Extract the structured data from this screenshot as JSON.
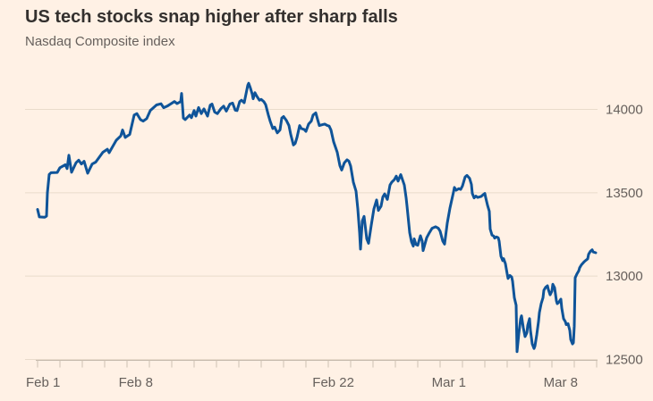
{
  "header": {
    "title": "US tech stocks snap higher after sharp falls",
    "subtitle": "Nasdaq Composite index"
  },
  "colors": {
    "background": "#FFF1E5",
    "line": "#0F5499",
    "title_text": "#33302E",
    "subtitle_text": "#66605C",
    "axis_label": "#66605C",
    "gridline": "#E9DBCB",
    "axis_line": "#C6BAAC",
    "tick": "#CCC1B3"
  },
  "chart_data": {
    "type": "line",
    "title": "US tech stocks snap higher after sharp falls",
    "subtitle": "Nasdaq Composite index",
    "xlabel": "",
    "ylabel": "",
    "legend": "none",
    "grid": "horizontal",
    "ylim": [
      12500,
      14200
    ],
    "yticks": [
      12500,
      13000,
      13500,
      14000
    ],
    "ytick_labels": [
      "12500",
      "13000",
      "13500",
      "14000"
    ],
    "x_unit": "trading days since Feb 1 (intraday, 1 unit = 1 trading day)",
    "x_range_days": [
      0,
      25
    ],
    "xticks": [
      {
        "label": "Feb 1",
        "day": 0
      },
      {
        "label": "Feb 8",
        "day": 5
      },
      {
        "label": "Feb 22",
        "day": 14
      },
      {
        "label": "Mar 1",
        "day": 19
      },
      {
        "label": "Mar 8",
        "day": 24
      }
    ],
    "minor_ticks_every_day": true,
    "series": [
      {
        "name": "Nasdaq Composite index",
        "color": "#0F5499",
        "points": [
          [
            0.0,
            13400
          ],
          [
            0.08,
            13355
          ],
          [
            0.32,
            13353
          ],
          [
            0.4,
            13360
          ],
          [
            0.44,
            13500
          ],
          [
            0.52,
            13610
          ],
          [
            0.6,
            13620
          ],
          [
            0.88,
            13622
          ],
          [
            1.0,
            13650
          ],
          [
            1.24,
            13668
          ],
          [
            1.32,
            13645
          ],
          [
            1.4,
            13725
          ],
          [
            1.52,
            13623
          ],
          [
            1.72,
            13680
          ],
          [
            1.84,
            13695
          ],
          [
            1.96,
            13672
          ],
          [
            2.08,
            13689
          ],
          [
            2.24,
            13617
          ],
          [
            2.44,
            13672
          ],
          [
            2.6,
            13684
          ],
          [
            2.92,
            13743
          ],
          [
            3.12,
            13761
          ],
          [
            3.2,
            13740
          ],
          [
            3.52,
            13815
          ],
          [
            3.72,
            13841
          ],
          [
            3.8,
            13877
          ],
          [
            3.92,
            13832
          ],
          [
            4.12,
            13850
          ],
          [
            4.32,
            13966
          ],
          [
            4.44,
            13975
          ],
          [
            4.6,
            13939
          ],
          [
            4.72,
            13930
          ],
          [
            4.88,
            13945
          ],
          [
            5.04,
            13993
          ],
          [
            5.32,
            14027
          ],
          [
            5.52,
            14034
          ],
          [
            5.64,
            14010
          ],
          [
            5.8,
            14020
          ],
          [
            5.92,
            14030
          ],
          [
            6.12,
            14047
          ],
          [
            6.24,
            14035
          ],
          [
            6.4,
            14047
          ],
          [
            6.44,
            14096
          ],
          [
            6.52,
            13948
          ],
          [
            6.6,
            13939
          ],
          [
            6.8,
            13966
          ],
          [
            6.88,
            13950
          ],
          [
            7.0,
            13993
          ],
          [
            7.08,
            13960
          ],
          [
            7.2,
            14011
          ],
          [
            7.32,
            13975
          ],
          [
            7.44,
            14003
          ],
          [
            7.6,
            13960
          ],
          [
            7.72,
            14025
          ],
          [
            7.8,
            14032
          ],
          [
            7.92,
            13984
          ],
          [
            8.04,
            13975
          ],
          [
            8.2,
            14005
          ],
          [
            8.32,
            14020
          ],
          [
            8.44,
            13990
          ],
          [
            8.6,
            14032
          ],
          [
            8.72,
            14038
          ],
          [
            8.84,
            13995
          ],
          [
            8.92,
            13993
          ],
          [
            9.04,
            14047
          ],
          [
            9.12,
            14055
          ],
          [
            9.24,
            14040
          ],
          [
            9.4,
            14145
          ],
          [
            9.44,
            14157
          ],
          [
            9.52,
            14127
          ],
          [
            9.6,
            14091
          ],
          [
            9.64,
            14064
          ],
          [
            9.72,
            14100
          ],
          [
            9.8,
            14080
          ],
          [
            9.92,
            14055
          ],
          [
            10.0,
            14060
          ],
          [
            10.12,
            14046
          ],
          [
            10.2,
            14028
          ],
          [
            10.32,
            13966
          ],
          [
            10.4,
            13930
          ],
          [
            10.52,
            13885
          ],
          [
            10.6,
            13894
          ],
          [
            10.72,
            13859
          ],
          [
            10.84,
            13877
          ],
          [
            10.92,
            13948
          ],
          [
            11.0,
            13957
          ],
          [
            11.12,
            13935
          ],
          [
            11.24,
            13903
          ],
          [
            11.32,
            13850
          ],
          [
            11.44,
            13787
          ],
          [
            11.52,
            13796
          ],
          [
            11.6,
            13832
          ],
          [
            11.72,
            13903
          ],
          [
            11.8,
            13885
          ],
          [
            11.92,
            13880
          ],
          [
            12.0,
            13868
          ],
          [
            12.12,
            13912
          ],
          [
            12.24,
            13930
          ],
          [
            12.32,
            13966
          ],
          [
            12.44,
            13979
          ],
          [
            12.52,
            13940
          ],
          [
            12.6,
            13903
          ],
          [
            12.72,
            13908
          ],
          [
            12.84,
            13912
          ],
          [
            12.96,
            13903
          ],
          [
            13.04,
            13900
          ],
          [
            13.12,
            13877
          ],
          [
            13.24,
            13805
          ],
          [
            13.4,
            13743
          ],
          [
            13.52,
            13662
          ],
          [
            13.6,
            13636
          ],
          [
            13.72,
            13680
          ],
          [
            13.84,
            13698
          ],
          [
            13.92,
            13690
          ],
          [
            14.0,
            13660
          ],
          [
            14.12,
            13564
          ],
          [
            14.24,
            13510
          ],
          [
            14.32,
            13403
          ],
          [
            14.4,
            13260
          ],
          [
            14.44,
            13162
          ],
          [
            14.52,
            13331
          ],
          [
            14.6,
            13358
          ],
          [
            14.72,
            13224
          ],
          [
            14.8,
            13197
          ],
          [
            14.92,
            13304
          ],
          [
            15.04,
            13403
          ],
          [
            15.16,
            13457
          ],
          [
            15.24,
            13394
          ],
          [
            15.36,
            13420
          ],
          [
            15.44,
            13475
          ],
          [
            15.52,
            13493
          ],
          [
            15.64,
            13460
          ],
          [
            15.76,
            13546
          ],
          [
            15.84,
            13564
          ],
          [
            15.96,
            13580
          ],
          [
            16.04,
            13600
          ],
          [
            16.12,
            13570
          ],
          [
            16.24,
            13609
          ],
          [
            16.4,
            13546
          ],
          [
            16.48,
            13470
          ],
          [
            16.52,
            13421
          ],
          [
            16.64,
            13260
          ],
          [
            16.72,
            13206
          ],
          [
            16.8,
            13180
          ],
          [
            16.84,
            13224
          ],
          [
            16.92,
            13190
          ],
          [
            17.0,
            13185
          ],
          [
            17.12,
            13242
          ],
          [
            17.2,
            13210
          ],
          [
            17.24,
            13153
          ],
          [
            17.4,
            13230
          ],
          [
            17.52,
            13260
          ],
          [
            17.64,
            13287
          ],
          [
            17.8,
            13296
          ],
          [
            17.92,
            13287
          ],
          [
            18.0,
            13270
          ],
          [
            18.12,
            13210
          ],
          [
            18.2,
            13192
          ],
          [
            18.32,
            13318
          ],
          [
            18.44,
            13408
          ],
          [
            18.6,
            13505
          ],
          [
            18.64,
            13532
          ],
          [
            18.72,
            13515
          ],
          [
            18.84,
            13525
          ],
          [
            18.92,
            13520
          ],
          [
            19.0,
            13541
          ],
          [
            19.12,
            13595
          ],
          [
            19.2,
            13604
          ],
          [
            19.32,
            13586
          ],
          [
            19.4,
            13550
          ],
          [
            19.44,
            13496
          ],
          [
            19.52,
            13469
          ],
          [
            19.6,
            13480
          ],
          [
            19.68,
            13472
          ],
          [
            19.84,
            13478
          ],
          [
            19.92,
            13488
          ],
          [
            20.0,
            13496
          ],
          [
            20.04,
            13470
          ],
          [
            20.12,
            13425
          ],
          [
            20.2,
            13389
          ],
          [
            20.24,
            13282
          ],
          [
            20.32,
            13246
          ],
          [
            20.4,
            13240
          ],
          [
            20.44,
            13228
          ],
          [
            20.52,
            13235
          ],
          [
            20.6,
            13230
          ],
          [
            20.64,
            13210
          ],
          [
            20.72,
            13120
          ],
          [
            20.8,
            13093
          ],
          [
            20.84,
            13105
          ],
          [
            20.92,
            13075
          ],
          [
            21.0,
            13013
          ],
          [
            21.04,
            12986
          ],
          [
            21.12,
            13004
          ],
          [
            21.2,
            12995
          ],
          [
            21.24,
            12970
          ],
          [
            21.32,
            12870
          ],
          [
            21.4,
            12825
          ],
          [
            21.44,
            12547
          ],
          [
            21.52,
            12655
          ],
          [
            21.6,
            12744
          ],
          [
            21.64,
            12762
          ],
          [
            21.72,
            12690
          ],
          [
            21.8,
            12637
          ],
          [
            21.88,
            12660
          ],
          [
            21.92,
            12705
          ],
          [
            22.0,
            12745
          ],
          [
            22.04,
            12674
          ],
          [
            22.12,
            12593
          ],
          [
            22.2,
            12566
          ],
          [
            22.24,
            12580
          ],
          [
            22.32,
            12647
          ],
          [
            22.4,
            12727
          ],
          [
            22.44,
            12781
          ],
          [
            22.52,
            12835
          ],
          [
            22.6,
            12870
          ],
          [
            22.64,
            12915
          ],
          [
            22.72,
            12933
          ],
          [
            22.8,
            12942
          ],
          [
            22.84,
            12920
          ],
          [
            22.92,
            12888
          ],
          [
            23.0,
            12910
          ],
          [
            23.04,
            12951
          ],
          [
            23.12,
            12930
          ],
          [
            23.2,
            12852
          ],
          [
            23.24,
            12835
          ],
          [
            23.32,
            12845
          ],
          [
            23.4,
            12862
          ],
          [
            23.44,
            12808
          ],
          [
            23.52,
            12745
          ],
          [
            23.6,
            12727
          ],
          [
            23.64,
            12709
          ],
          [
            23.72,
            12715
          ],
          [
            23.8,
            12674
          ],
          [
            23.84,
            12620
          ],
          [
            23.92,
            12593
          ],
          [
            23.96,
            12600
          ],
          [
            24.0,
            12700
          ],
          [
            24.04,
            12990
          ],
          [
            24.12,
            13014
          ],
          [
            24.2,
            13032
          ],
          [
            24.24,
            13050
          ],
          [
            24.32,
            13068
          ],
          [
            24.44,
            13086
          ],
          [
            24.52,
            13095
          ],
          [
            24.6,
            13104
          ],
          [
            24.64,
            13131
          ],
          [
            24.72,
            13149
          ],
          [
            24.8,
            13158
          ],
          [
            24.84,
            13145
          ],
          [
            24.96,
            13140
          ]
        ]
      }
    ]
  }
}
